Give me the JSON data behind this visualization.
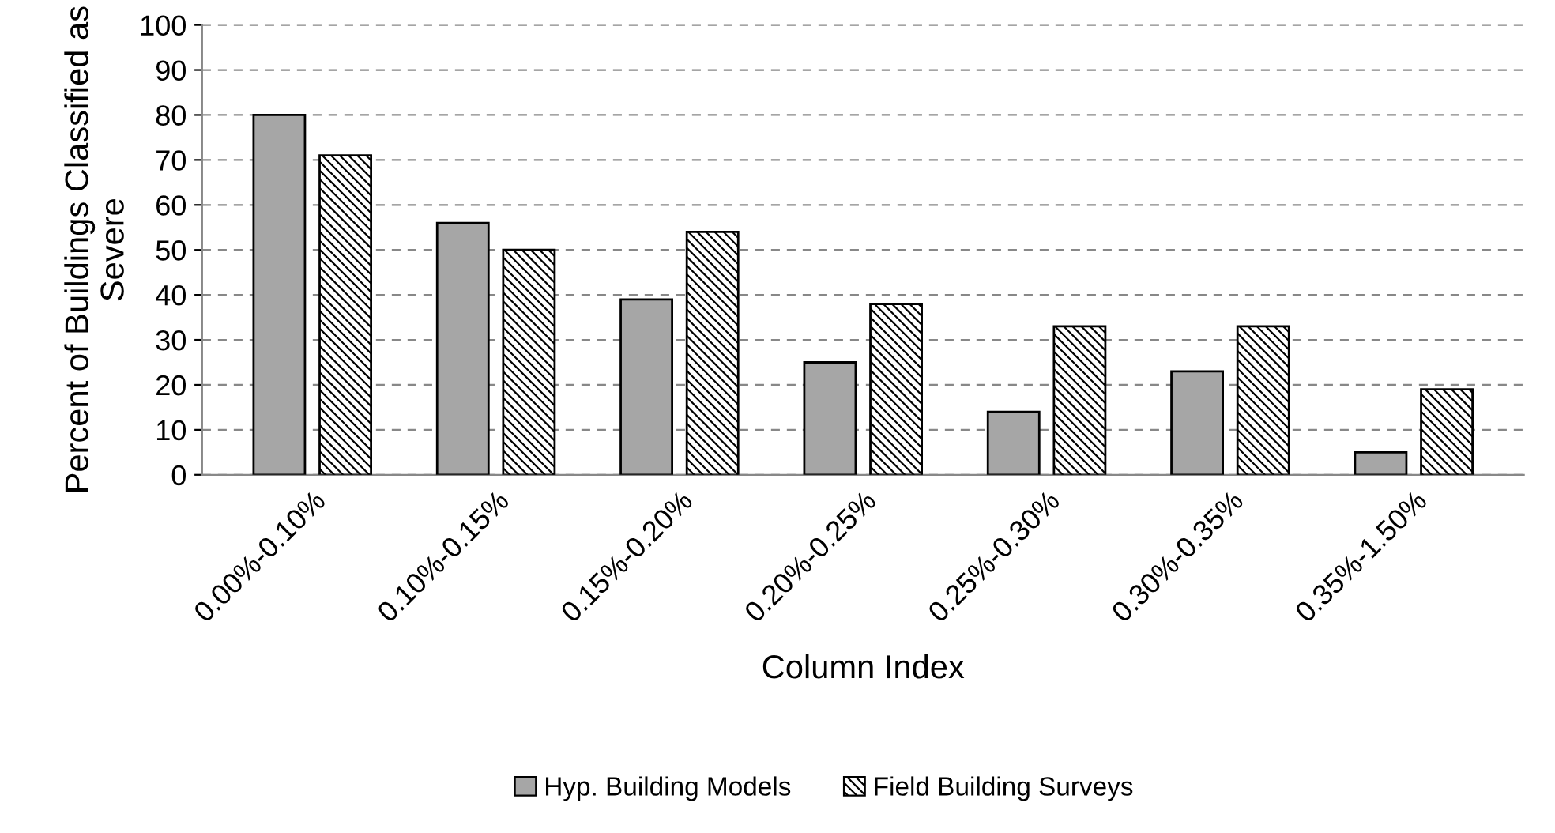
{
  "chart_data": {
    "type": "bar",
    "xlabel": "Column Index",
    "ylabel": "Percent of Buildings Classified as Severe",
    "categories": [
      "0.00%-0.10%",
      "0.10%-0.15%",
      "0.15%-0.20%",
      "0.20%-0.25%",
      "0.25%-0.30%",
      "0.30%-0.35%",
      "0.35%-1.50%"
    ],
    "series": [
      {
        "name": "Hyp. Building Models",
        "color": "#a6a6a6",
        "values": [
          80,
          56,
          39,
          25,
          14,
          23,
          5
        ]
      },
      {
        "name": "Field Building Surveys",
        "color": "#000000",
        "values": [
          71,
          50,
          54,
          38,
          33,
          33,
          19
        ]
      }
    ],
    "ylim": [
      0,
      100
    ],
    "yticks": [
      0,
      10,
      20,
      30,
      40,
      50,
      60,
      70,
      80,
      90,
      100
    ],
    "grid": "y",
    "legend": "bottom"
  }
}
